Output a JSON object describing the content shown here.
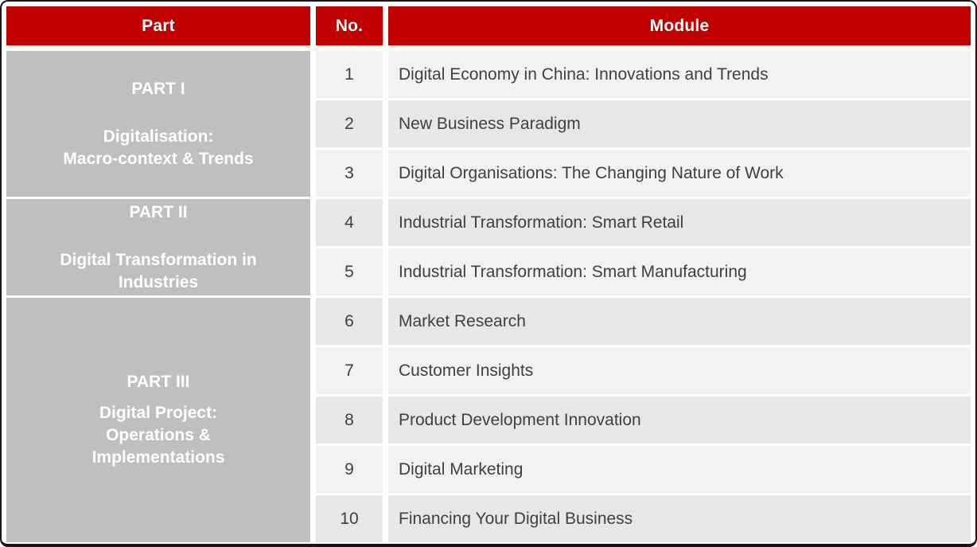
{
  "header": {
    "part": "Part",
    "no": "No.",
    "module": "Module"
  },
  "parts": [
    {
      "title": "PART I",
      "lines": [
        "Digitalisation:",
        "Macro-context & Trends"
      ]
    },
    {
      "title": "PART II",
      "lines": [
        "Digital Transformation in",
        "Industries"
      ]
    },
    {
      "title": "PART III",
      "lines": [
        "Digital Project:",
        "Operations &",
        "Implementations"
      ]
    }
  ],
  "modules": [
    {
      "no": "1",
      "title": "Digital Economy in China: Innovations and Trends"
    },
    {
      "no": "2",
      "title": "New Business Paradigm"
    },
    {
      "no": "3",
      "title": "Digital Organisations: The Changing Nature of Work"
    },
    {
      "no": "4",
      "title": "Industrial Transformation: Smart Retail"
    },
    {
      "no": "5",
      "title": "Industrial Transformation: Smart Manufacturing"
    },
    {
      "no": "6",
      "title": "Market Research"
    },
    {
      "no": "7",
      "title": "Customer Insights"
    },
    {
      "no": "8",
      "title": "Product Development Innovation"
    },
    {
      "no": "9",
      "title": "Digital Marketing"
    },
    {
      "no": "10",
      "title": "Financing Your Digital Business"
    }
  ],
  "colors": {
    "header_red": "#C00000",
    "part_gray": "#BFBFBF",
    "row_light": "#F2F2F2",
    "row_dark": "#E7E7E7",
    "text_dark": "#404040",
    "border_dark": "#161616"
  }
}
